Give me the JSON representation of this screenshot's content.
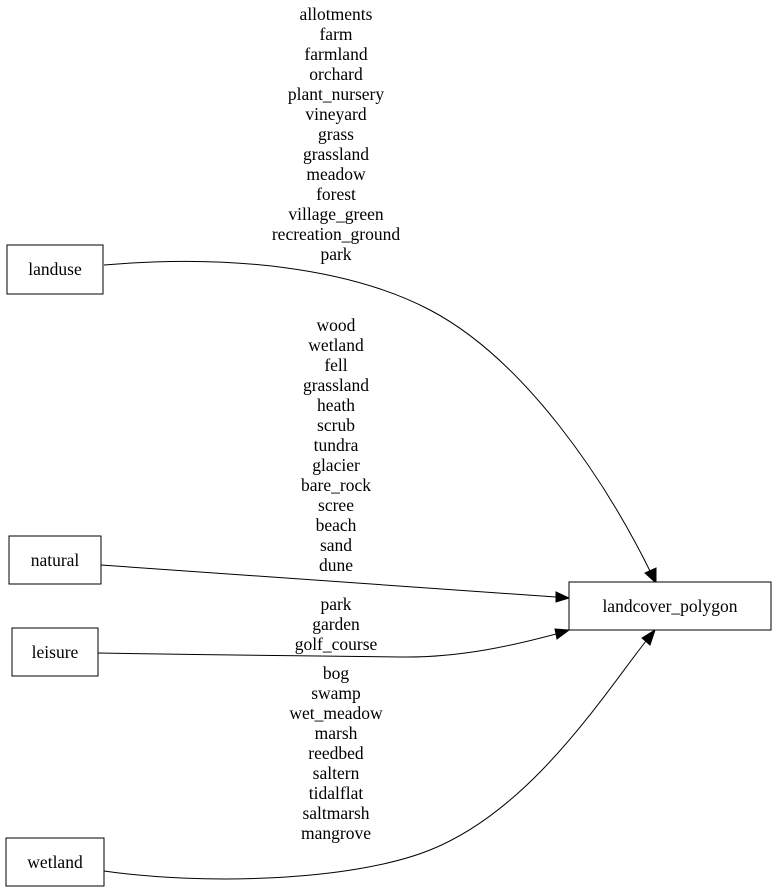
{
  "nodes": {
    "landuse": "landuse",
    "natural": "natural",
    "leisure": "leisure",
    "wetland": "wetland",
    "target": "landcover_polygon"
  },
  "edges": {
    "landuse": [
      "allotments",
      "farm",
      "farmland",
      "orchard",
      "plant_nursery",
      "vineyard",
      "grass",
      "grassland",
      "meadow",
      "forest",
      "village_green",
      "recreation_ground",
      "park"
    ],
    "natural": [
      "wood",
      "wetland",
      "fell",
      "grassland",
      "heath",
      "scrub",
      "tundra",
      "glacier",
      "bare_rock",
      "scree",
      "beach",
      "sand",
      "dune"
    ],
    "leisure": [
      "park",
      "garden",
      "golf_course"
    ],
    "wetland": [
      "bog",
      "swamp",
      "wet_meadow",
      "marsh",
      "reedbed",
      "saltern",
      "tidalflat",
      "saltmarsh",
      "mangrove"
    ]
  }
}
